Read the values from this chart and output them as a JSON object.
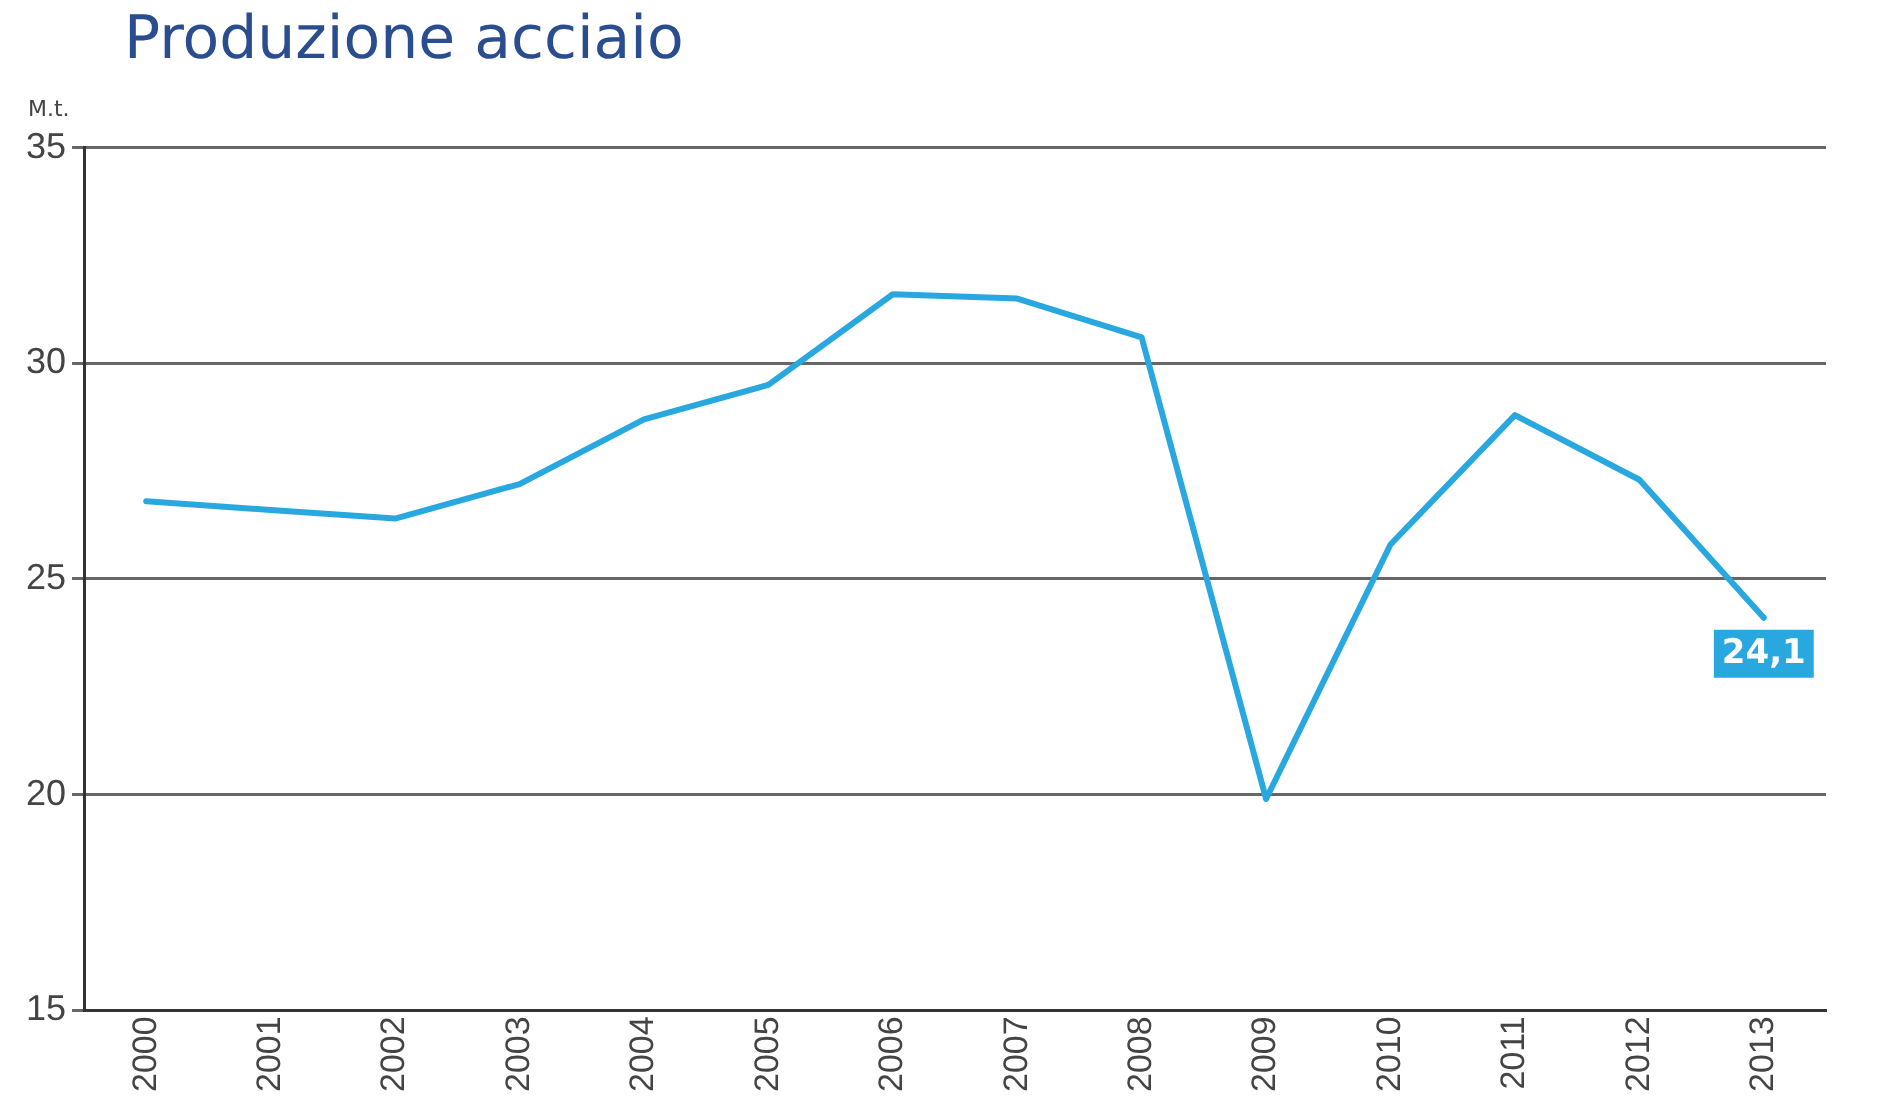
{
  "chart_data": {
    "type": "line",
    "title": "Produzione acciaio",
    "ylabel": "M.t.",
    "categories": [
      "2000",
      "2001",
      "2002",
      "2003",
      "2004",
      "2005",
      "2006",
      "2007",
      "2008",
      "2009",
      "2010",
      "2011",
      "2012",
      "2013"
    ],
    "series": [
      {
        "color": "#29a8e0",
        "values": [
          26.8,
          26.6,
          26.4,
          27.2,
          28.7,
          29.5,
          31.6,
          31.5,
          30.6,
          19.9,
          25.8,
          28.8,
          27.3,
          24.1
        ],
        "value_labels": [
          null,
          null,
          null,
          null,
          null,
          null,
          null,
          null,
          null,
          null,
          null,
          null,
          null,
          "24,1"
        ]
      }
    ],
    "ylim": [
      15,
      35
    ],
    "yticks": [
      15,
      20,
      25,
      30,
      35
    ],
    "grid": "y",
    "legend": false,
    "marker": "none",
    "line_style": "solid"
  }
}
